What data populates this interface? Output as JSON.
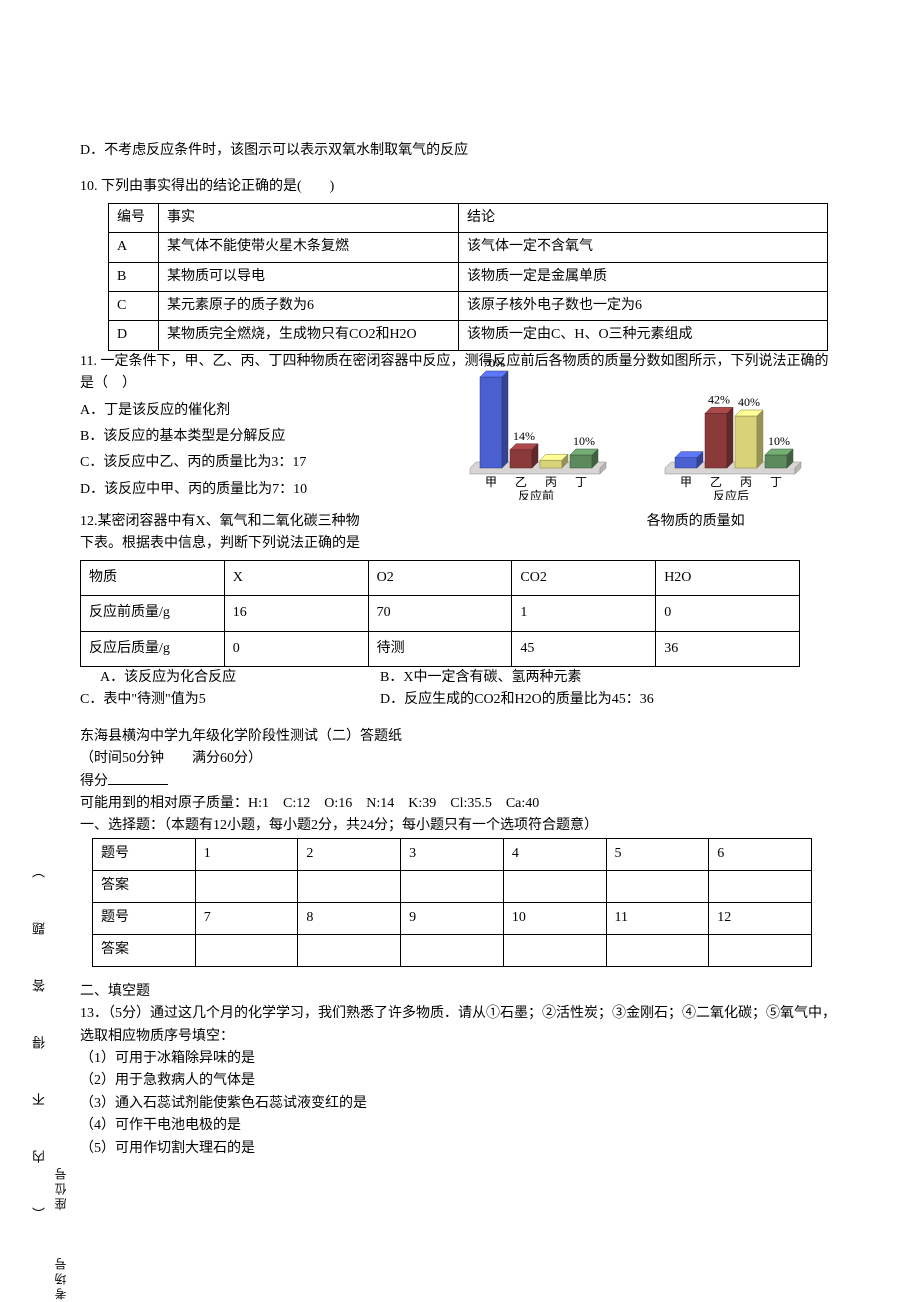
{
  "q9d": "D．不考虑反应条件时，该图示可以表示双氧水制取氧气的反应",
  "q10": {
    "stem": "10. 下列由事实得出的结论正确的是(　　)",
    "headers": [
      "编号",
      "事实",
      "结论"
    ],
    "rows": [
      [
        "A",
        "某气体不能使带火星木条复燃",
        "该气体一定不含氧气"
      ],
      [
        "B",
        "某物质可以导电",
        "该物质一定是金属单质"
      ],
      [
        "C",
        "某元素原子的质子数为6",
        "该原子核外电子数也一定为6"
      ],
      [
        "D",
        "某物质完全燃烧，生成物只有CO2和H2O",
        "该物质一定由C、H、O三种元素组成"
      ]
    ]
  },
  "q11": {
    "stem": "11. 一定条件下，甲、乙、丙、丁四种物质在密闭容器中反应，测得反应前后各物质的质量分数如图所示，下列说法正确的是（　）",
    "opts": {
      "a": "A．丁是该反应的催化剂",
      "b": "B．该反应的基本类型是分解反应",
      "c": "C．该反应中乙、丙的质量比为3：17",
      "d": "D．该反应中甲、丙的质量比为7：10"
    }
  },
  "q12": {
    "stem_a": "12.某密闭容器中有X、氧气和二氧化碳三种物",
    "stem_b": "各物质的质量如",
    "stem2": "下表。根据表中信息，判断下列说法正确的是",
    "headers": [
      "物质",
      "X",
      "O2",
      "CO2",
      "H2O"
    ],
    "row1": [
      "反应前质量/g",
      "16",
      "70",
      "1",
      "0"
    ],
    "row2": [
      "反应后质量/g",
      "0",
      "待测",
      "45",
      "36"
    ],
    "opts": {
      "a": "A．该反应为化合反应",
      "b": "B．X中一定含有碳、氢两种元素",
      "c": "C．表中\"待测\"值为5",
      "d": "D．反应生成的CO2和H2O的质量比为45：36"
    }
  },
  "header2": {
    "title": "东海县横沟中学九年级化学阶段性测试（二）答题纸",
    "time": "（时间50分钟　　满分60分）",
    "score": "得分",
    "mass": "可能用到的相对原子质量：H:1　C:12　O:16　N:14　K:39　Cl:35.5　Ca:40",
    "sec1": "一、选择题：（本题有12小题，每小题2分，共24分；每小题只有一个选项符合题意）"
  },
  "ans_table": {
    "hrow": "题号",
    "arow": "答案",
    "nums1": [
      "1",
      "2",
      "3",
      "4",
      "5",
      "6"
    ],
    "nums2": [
      "7",
      "8",
      "9",
      "10",
      "11",
      "12"
    ]
  },
  "sec2": "二、填空题",
  "q13": {
    "stem": "13．（5分）通过这几个月的化学学习，我们熟悉了许多物质．请从①石墨；②活性炭；③金刚石；④二氧化碳；⑤氧气中，选取相应物质序号填空：",
    "items": [
      "（1）可用于冰箱除异味的是",
      "（2）用于急救病人的气体是",
      "（3）通入石蕊试剂能使紫色石蕊试液变红的是",
      "（4）可作干电池电极的是",
      "（5）可用作切割大理石的是"
    ]
  },
  "chart": {
    "before_label": "反应前",
    "after_label": "反应后",
    "categories": [
      "甲",
      "乙",
      "丙",
      "丁"
    ],
    "before_values": [
      70,
      14,
      6,
      10
    ],
    "before_labels": [
      "70%",
      "14%",
      "",
      "10%"
    ],
    "after_values": [
      8,
      42,
      40,
      10
    ],
    "after_labels": [
      "",
      "42%",
      "40%",
      "10%"
    ],
    "colors": [
      "#4a5fd0",
      "#8b3a3a",
      "#d8d278",
      "#5c8a5c"
    ]
  },
  "sidebar_inner": "（　　内　　不　　得　　答　　题　　）",
  "sidebar_outer": "考场号　　　座位号　　　"
}
